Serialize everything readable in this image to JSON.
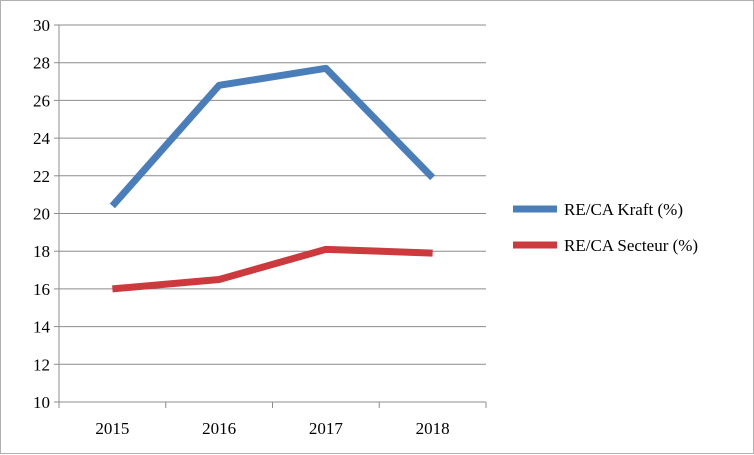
{
  "chart_data": {
    "type": "line",
    "categories": [
      "2015",
      "2016",
      "2017",
      "2018"
    ],
    "series": [
      {
        "name": "RE/CA Kraft (%)",
        "values": [
          20.4,
          26.8,
          27.7,
          21.9
        ],
        "color": "#4a7ebb"
      },
      {
        "name": "RE/CA Secteur (%)",
        "values": [
          16.0,
          16.5,
          18.1,
          17.9
        ],
        "color": "#cc3a3e"
      }
    ],
    "title": "",
    "xlabel": "",
    "ylabel": "",
    "ylim": [
      10,
      30
    ],
    "yticks": [
      "10",
      "12",
      "14",
      "16",
      "18",
      "20",
      "22",
      "24",
      "26",
      "28",
      "30"
    ],
    "grid": "horizontal",
    "legend_position": "right"
  }
}
